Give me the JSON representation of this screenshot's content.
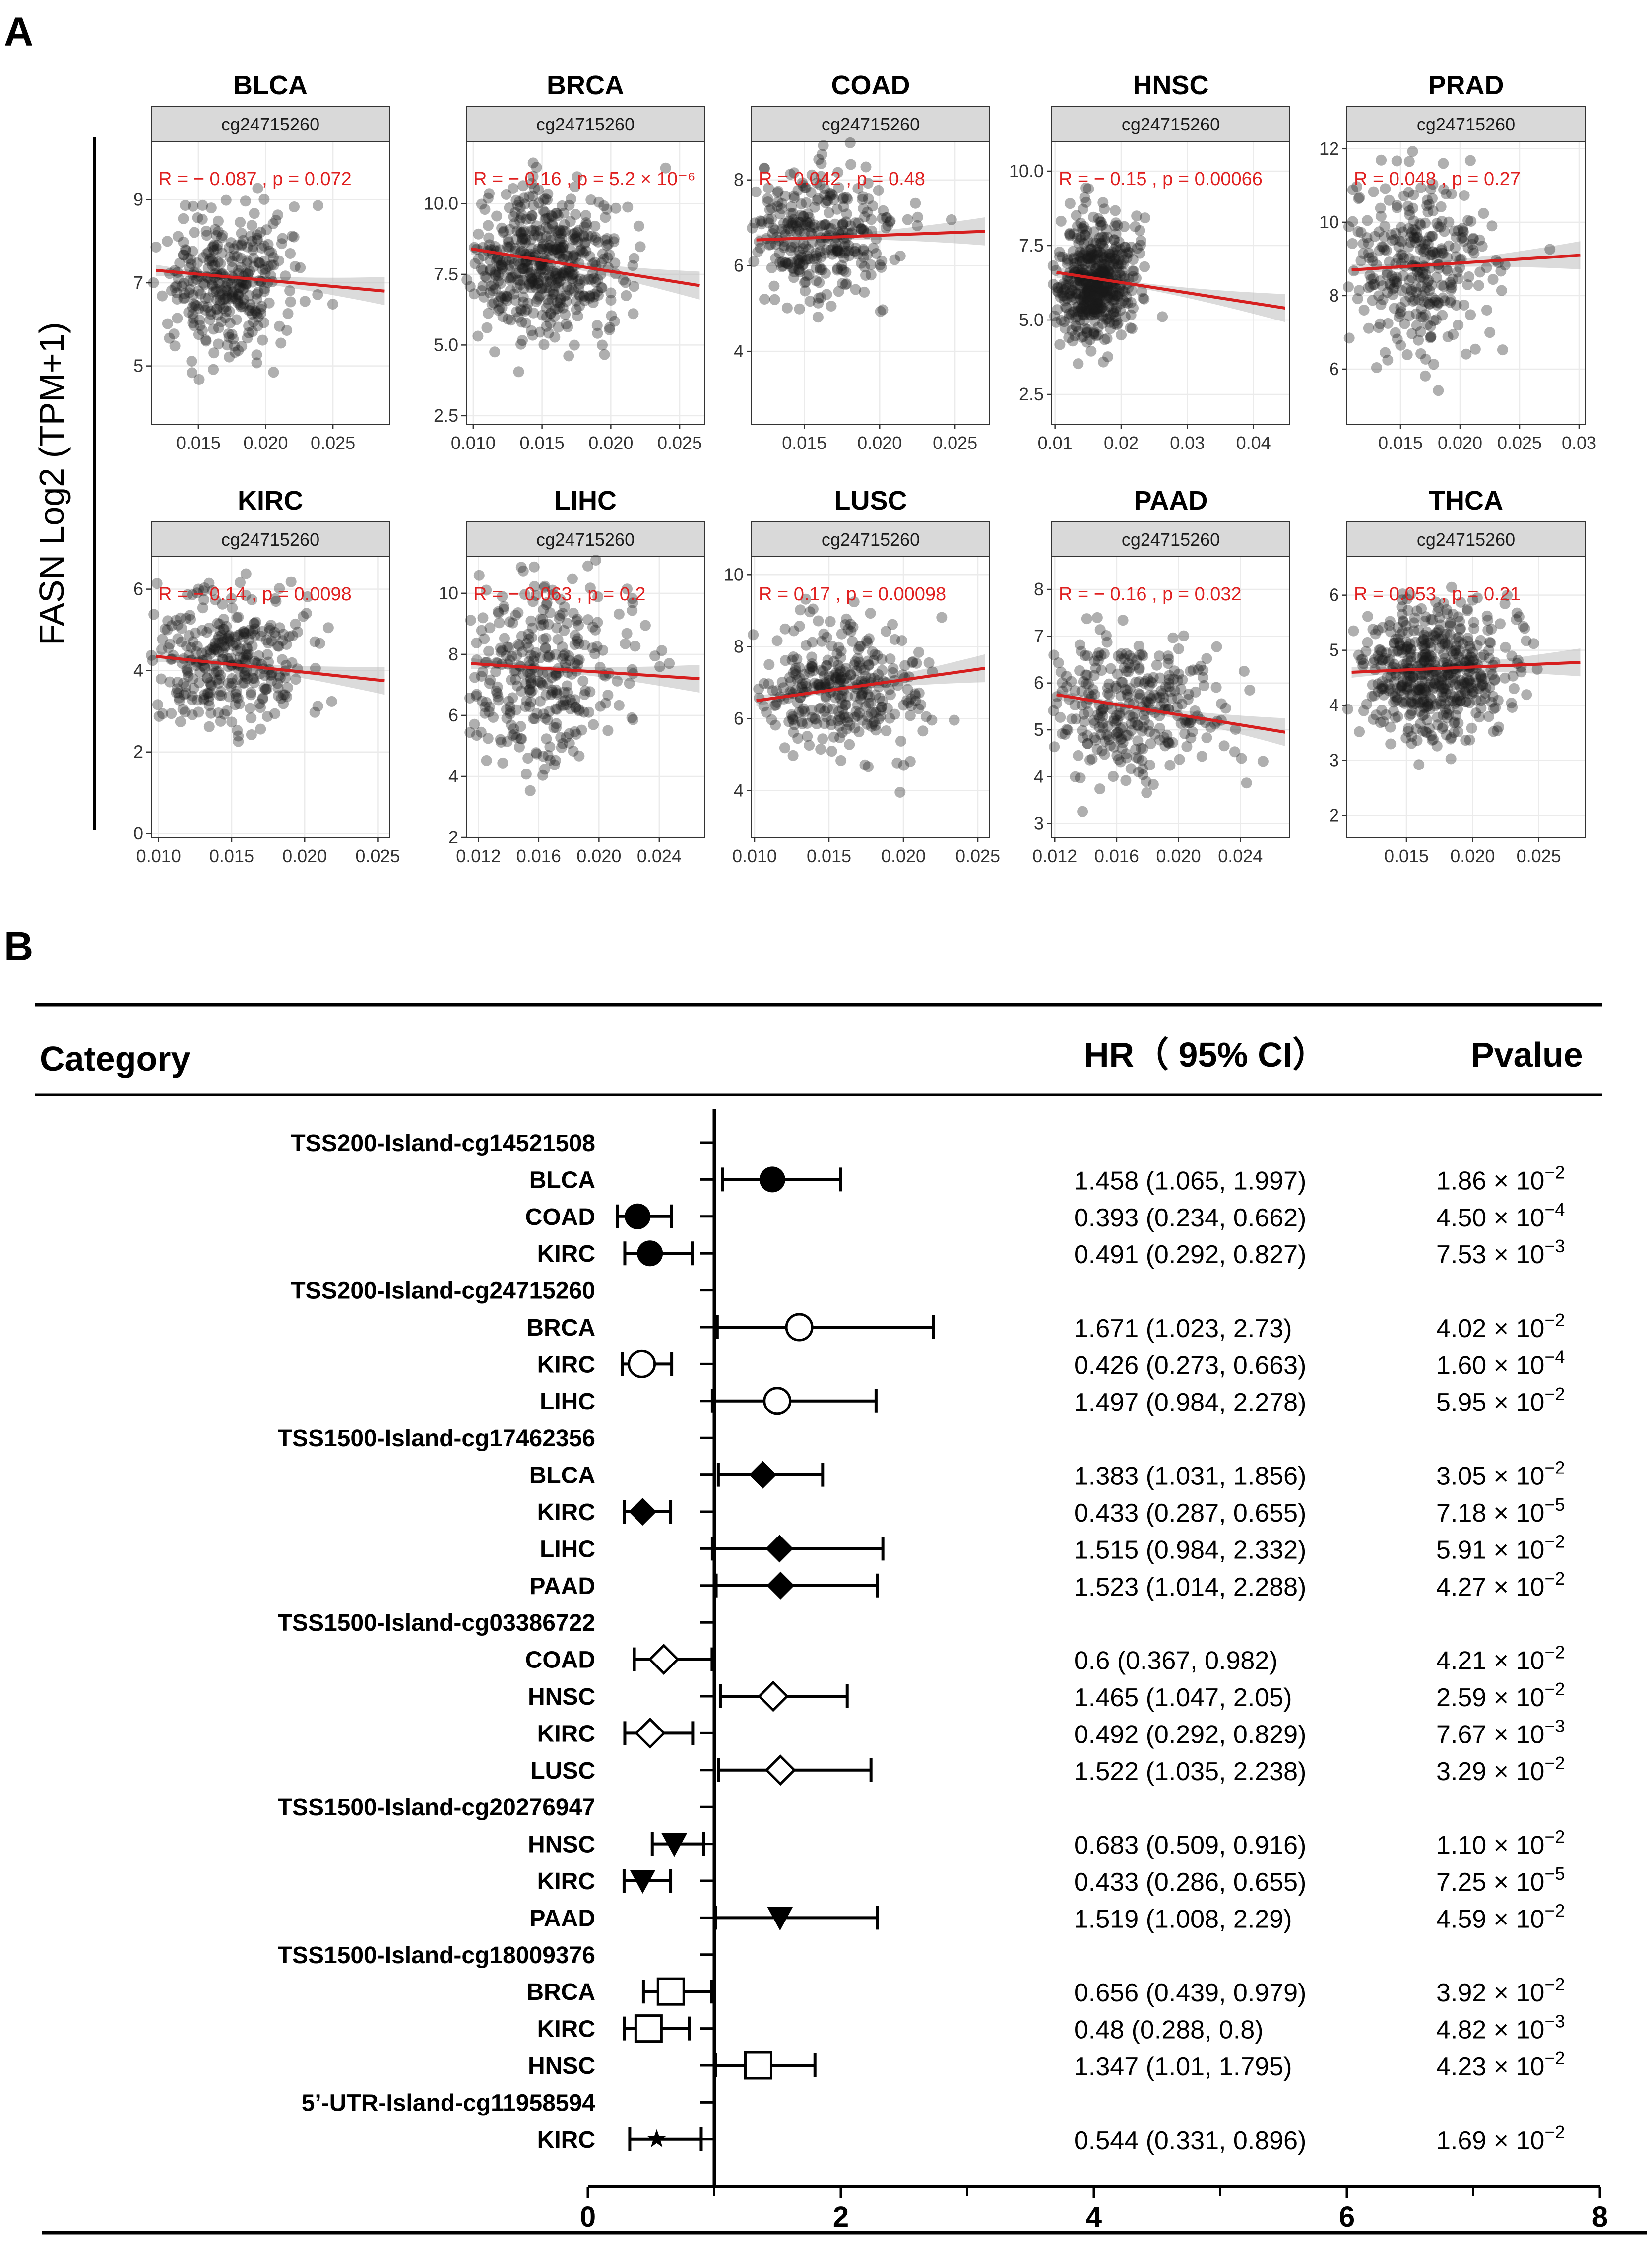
{
  "panels": {
    "a": "A",
    "b": "B"
  },
  "chart_data": [
    {
      "type": "scatter",
      "panel": "A",
      "ylabel": "FASN Log2 (TPM+1)",
      "probe": "cg24715260",
      "colors": {
        "points": "#1a1a1a",
        "fit": "#d61f1f",
        "stats": "#e02020",
        "strip": "#d9d9d9",
        "grid": "#ebebeb"
      },
      "plots": [
        {
          "title": "BLCA",
          "strip": "cg24715260",
          "stat": "R = − 0.087 , p = 0.072",
          "xlim": [
            0.0115,
            0.0292
          ],
          "ylim": [
            3.6,
            10.4
          ],
          "xticks": [
            0.015,
            0.02,
            0.025
          ],
          "xtick_labels": [
            "0.015",
            "0.020",
            "0.025"
          ],
          "yticks": [
            5,
            7,
            9
          ],
          "ytick_labels": [
            "5",
            "7",
            "9"
          ],
          "fit": [
            7.3,
            6.8
          ],
          "center": [
            0.017,
            7.0
          ],
          "spread": [
            0.0025,
            0.9
          ]
        },
        {
          "title": "BRCA",
          "strip": "cg24715260",
          "stat": "R = − 0.16 , p = 5.2 × 10⁻⁶",
          "xlim": [
            0.0095,
            0.0268
          ],
          "ylim": [
            2.2,
            12.2
          ],
          "xticks": [
            0.01,
            0.015,
            0.02,
            0.025
          ],
          "xtick_labels": [
            "0.010",
            "0.015",
            "0.020",
            "0.025"
          ],
          "yticks": [
            2.5,
            5.0,
            7.5,
            10.0
          ],
          "ytick_labels": [
            "2.5",
            "5.0",
            "7.5",
            "10.0"
          ],
          "fit": [
            8.4,
            7.1
          ],
          "center": [
            0.015,
            7.9
          ],
          "spread": [
            0.003,
            1.3
          ]
        },
        {
          "title": "COAD",
          "strip": "cg24715260",
          "stat": "R = 0.042 , p = 0.48",
          "xlim": [
            0.0115,
            0.0273
          ],
          "ylim": [
            2.3,
            8.9
          ],
          "xticks": [
            0.015,
            0.02,
            0.025
          ],
          "xtick_labels": [
            "0.015",
            "0.020",
            "0.025"
          ],
          "yticks": [
            4,
            6,
            8
          ],
          "ytick_labels": [
            "4",
            "6",
            "8"
          ],
          "fit": [
            6.6,
            6.8
          ],
          "center": [
            0.016,
            6.7
          ],
          "spread": [
            0.0025,
            0.8
          ]
        },
        {
          "title": "HNSC",
          "strip": "cg24715260",
          "stat": "R = − 0.15 , p = 0.00066",
          "xlim": [
            0.0095,
            0.0455
          ],
          "ylim": [
            1.5,
            11.0
          ],
          "xticks": [
            0.01,
            0.02,
            0.03,
            0.04
          ],
          "xtick_labels": [
            "0.01",
            "0.02",
            "0.03",
            "0.04"
          ],
          "yticks": [
            2.5,
            5.0,
            7.5,
            10.0
          ],
          "ytick_labels": [
            "2.5",
            "5.0",
            "7.5",
            "10.0"
          ],
          "fit": [
            6.6,
            5.4
          ],
          "center": [
            0.016,
            6.3
          ],
          "spread": [
            0.003,
            1.0
          ]
        },
        {
          "title": "PRAD",
          "strip": "cg24715260",
          "stat": "R = 0.048 , p = 0.27",
          "xlim": [
            0.0105,
            0.0305
          ],
          "ylim": [
            4.5,
            12.2
          ],
          "xticks": [
            0.015,
            0.02,
            0.025,
            0.03
          ],
          "xtick_labels": [
            "0.015",
            "0.020",
            "0.025",
            "0.03"
          ],
          "yticks": [
            6,
            8,
            10,
            12
          ],
          "ytick_labels": [
            "6",
            "8",
            "10",
            "12"
          ],
          "fit": [
            8.7,
            9.1
          ],
          "center": [
            0.016,
            8.8
          ],
          "spread": [
            0.003,
            1.2
          ]
        },
        {
          "title": "KIRC",
          "strip": "cg24715260",
          "stat": "R = − 0.14 , p = 0.0098",
          "xlim": [
            0.0095,
            0.0258
          ],
          "ylim": [
            -0.1,
            6.8
          ],
          "xticks": [
            0.01,
            0.015,
            0.02,
            0.025
          ],
          "xtick_labels": [
            "0.010",
            "0.015",
            "0.020",
            "0.025"
          ],
          "yticks": [
            0,
            2,
            4,
            6
          ],
          "ytick_labels": [
            "0",
            "2",
            "4",
            "6"
          ],
          "fit": [
            4.35,
            3.75
          ],
          "center": [
            0.015,
            4.2
          ],
          "spread": [
            0.0028,
            0.8
          ]
        },
        {
          "title": "LIHC",
          "strip": "cg24715260",
          "stat": "R = − 0.063 , p = 0.2",
          "xlim": [
            0.0112,
            0.027
          ],
          "ylim": [
            2.0,
            11.2
          ],
          "xticks": [
            0.012,
            0.016,
            0.02,
            0.024
          ],
          "xtick_labels": [
            "0.012",
            "0.016",
            "0.020",
            "0.024"
          ],
          "yticks": [
            2,
            4,
            6,
            8,
            10
          ],
          "ytick_labels": [
            "2",
            "4",
            "6",
            "8",
            "10"
          ],
          "fit": [
            7.7,
            7.2
          ],
          "center": [
            0.016,
            7.5
          ],
          "spread": [
            0.003,
            1.5
          ]
        },
        {
          "title": "LUSC",
          "strip": "cg24715260",
          "stat": "R = 0.17 , p = 0.00098",
          "xlim": [
            0.0098,
            0.0258
          ],
          "ylim": [
            2.7,
            10.5
          ],
          "xticks": [
            0.01,
            0.015,
            0.02,
            0.025
          ],
          "xtick_labels": [
            "0.010",
            "0.015",
            "0.020",
            "0.025"
          ],
          "yticks": [
            4,
            6,
            8,
            10
          ],
          "ytick_labels": [
            "4",
            "6",
            "8",
            "10"
          ],
          "fit": [
            6.5,
            7.4
          ],
          "center": [
            0.016,
            6.9
          ],
          "spread": [
            0.0028,
            0.9
          ]
        },
        {
          "title": "PAAD",
          "strip": "cg24715260",
          "stat": "R = − 0.16 , p = 0.032",
          "xlim": [
            0.0118,
            0.0272
          ],
          "ylim": [
            2.7,
            8.7
          ],
          "xticks": [
            0.012,
            0.016,
            0.02,
            0.024
          ],
          "xtick_labels": [
            "0.012",
            "0.016",
            "0.020",
            "0.024"
          ],
          "yticks": [
            3,
            4,
            5,
            6,
            7,
            8
          ],
          "ytick_labels": [
            "3",
            "4",
            "5",
            "6",
            "7",
            "8"
          ],
          "fit": [
            5.75,
            4.95
          ],
          "center": [
            0.017,
            5.4
          ],
          "spread": [
            0.003,
            0.8
          ]
        },
        {
          "title": "THCA",
          "strip": "cg24715260",
          "stat": "R = 0.053 , p = 0.21",
          "xlim": [
            0.0105,
            0.0285
          ],
          "ylim": [
            1.6,
            6.7
          ],
          "xticks": [
            0.015,
            0.02,
            0.025
          ],
          "xtick_labels": [
            "0.015",
            "0.020",
            "0.025"
          ],
          "yticks": [
            2,
            3,
            4,
            5,
            6
          ],
          "ytick_labels": [
            "2",
            "3",
            "4",
            "5",
            "6"
          ],
          "fit": [
            4.6,
            4.78
          ],
          "center": [
            0.017,
            4.6
          ],
          "spread": [
            0.0028,
            0.6
          ]
        }
      ]
    },
    {
      "type": "forest",
      "panel": "B",
      "headers": {
        "category": "Category",
        "hr": "HR（ 95% CI）",
        "pvalue": "Pvalue"
      },
      "xlim": [
        0,
        8
      ],
      "reference_line": 1,
      "xticks": [
        0,
        2,
        4,
        6,
        8
      ],
      "xminor": [
        1,
        3,
        5,
        7
      ],
      "xtick_labels": [
        "0",
        "2",
        "4",
        "6",
        "8"
      ],
      "groups": [
        {
          "label": "TSS200-Island-cg14521508",
          "marker": "filled-circle",
          "rows": [
            {
              "cancer": "BLCA",
              "hr": 1.458,
              "lo": 1.065,
              "hi": 1.997,
              "hr_text": "1.458 (1.065, 1.997)",
              "p_mant": "1.86 × 10",
              "p_exp": "−2"
            },
            {
              "cancer": "COAD",
              "hr": 0.393,
              "lo": 0.234,
              "hi": 0.662,
              "hr_text": "0.393 (0.234, 0.662)",
              "p_mant": "4.50 × 10",
              "p_exp": "−4"
            },
            {
              "cancer": "KIRC",
              "hr": 0.491,
              "lo": 0.292,
              "hi": 0.827,
              "hr_text": "0.491 (0.292, 0.827)",
              "p_mant": "7.53 × 10",
              "p_exp": "−3"
            }
          ]
        },
        {
          "label": "TSS200-Island-cg24715260",
          "marker": "open-circle",
          "rows": [
            {
              "cancer": "BRCA",
              "hr": 1.671,
              "lo": 1.023,
              "hi": 2.73,
              "hr_text": "1.671 (1.023, 2.73)",
              "p_mant": "4.02 × 10",
              "p_exp": "−2"
            },
            {
              "cancer": "KIRC",
              "hr": 0.426,
              "lo": 0.273,
              "hi": 0.663,
              "hr_text": "0.426 (0.273, 0.663)",
              "p_mant": "1.60 × 10",
              "p_exp": "−4"
            },
            {
              "cancer": "LIHC",
              "hr": 1.497,
              "lo": 0.984,
              "hi": 2.278,
              "hr_text": "1.497 (0.984, 2.278)",
              "p_mant": "5.95 × 10",
              "p_exp": "−2"
            }
          ]
        },
        {
          "label": "TSS1500-Island-cg17462356",
          "marker": "filled-diamond",
          "rows": [
            {
              "cancer": "BLCA",
              "hr": 1.383,
              "lo": 1.031,
              "hi": 1.856,
              "hr_text": "1.383 (1.031, 1.856)",
              "p_mant": "3.05 × 10",
              "p_exp": "−2"
            },
            {
              "cancer": "KIRC",
              "hr": 0.433,
              "lo": 0.287,
              "hi": 0.655,
              "hr_text": "0.433 (0.287, 0.655)",
              "p_mant": "7.18 × 10",
              "p_exp": "−5"
            },
            {
              "cancer": "LIHC",
              "hr": 1.515,
              "lo": 0.984,
              "hi": 2.332,
              "hr_text": "1.515 (0.984, 2.332)",
              "p_mant": "5.91 × 10",
              "p_exp": "−2"
            },
            {
              "cancer": "PAAD",
              "hr": 1.523,
              "lo": 1.014,
              "hi": 2.288,
              "hr_text": "1.523 (1.014, 2.288)",
              "p_mant": "4.27 × 10",
              "p_exp": "−2"
            }
          ]
        },
        {
          "label": "TSS1500-Island-cg03386722",
          "marker": "open-diamond",
          "rows": [
            {
              "cancer": "COAD",
              "hr": 0.6,
              "lo": 0.367,
              "hi": 0.982,
              "hr_text": "0.6 (0.367, 0.982)",
              "p_mant": "4.21 × 10",
              "p_exp": "−2"
            },
            {
              "cancer": "HNSC",
              "hr": 1.465,
              "lo": 1.047,
              "hi": 2.05,
              "hr_text": "1.465 (1.047, 2.05)",
              "p_mant": "2.59 × 10",
              "p_exp": "−2"
            },
            {
              "cancer": "KIRC",
              "hr": 0.492,
              "lo": 0.292,
              "hi": 0.829,
              "hr_text": "0.492 (0.292, 0.829)",
              "p_mant": "7.67 × 10",
              "p_exp": "−3"
            },
            {
              "cancer": "LUSC",
              "hr": 1.522,
              "lo": 1.035,
              "hi": 2.238,
              "hr_text": "1.522 (1.035, 2.238)",
              "p_mant": "3.29 × 10",
              "p_exp": "−2"
            }
          ]
        },
        {
          "label": "TSS1500-Island-cg20276947",
          "marker": "filled-triangle-down",
          "rows": [
            {
              "cancer": "HNSC",
              "hr": 0.683,
              "lo": 0.509,
              "hi": 0.916,
              "hr_text": "0.683 (0.509, 0.916)",
              "p_mant": "1.10 × 10",
              "p_exp": "−2"
            },
            {
              "cancer": "KIRC",
              "hr": 0.433,
              "lo": 0.286,
              "hi": 0.655,
              "hr_text": "0.433 (0.286, 0.655)",
              "p_mant": "7.25 × 10",
              "p_exp": "−5"
            },
            {
              "cancer": "PAAD",
              "hr": 1.519,
              "lo": 1.008,
              "hi": 2.29,
              "hr_text": "1.519 (1.008, 2.29)",
              "p_mant": "4.59 × 10",
              "p_exp": "−2"
            }
          ]
        },
        {
          "label": "TSS1500-Island-cg18009376",
          "marker": "open-square",
          "rows": [
            {
              "cancer": "BRCA",
              "hr": 0.656,
              "lo": 0.439,
              "hi": 0.979,
              "hr_text": "0.656 (0.439, 0.979)",
              "p_mant": "3.92 × 10",
              "p_exp": "−2"
            },
            {
              "cancer": "KIRC",
              "hr": 0.48,
              "lo": 0.288,
              "hi": 0.8,
              "hr_text": "0.48 (0.288, 0.8)",
              "p_mant": "4.82 × 10",
              "p_exp": "−3"
            },
            {
              "cancer": "HNSC",
              "hr": 1.347,
              "lo": 1.01,
              "hi": 1.795,
              "hr_text": "1.347 (1.01, 1.795)",
              "p_mant": "4.23 × 10",
              "p_exp": "−2"
            }
          ]
        },
        {
          "label": "5’-UTR-Island-cg11958594",
          "marker": "filled-star",
          "rows": [
            {
              "cancer": "KIRC",
              "hr": 0.544,
              "lo": 0.331,
              "hi": 0.896,
              "hr_text": "0.544 (0.331, 0.896)",
              "p_mant": "1.69 × 10",
              "p_exp": "−2"
            }
          ]
        }
      ]
    }
  ]
}
